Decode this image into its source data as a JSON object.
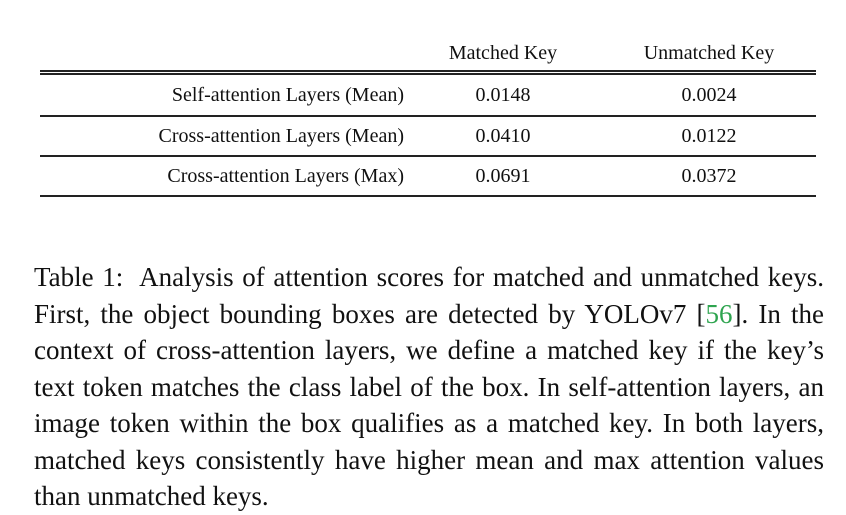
{
  "table": {
    "columns": [
      "",
      "Matched Key",
      "Unmatched Key"
    ],
    "rows": [
      {
        "label": "Self-attention Layers (Mean)",
        "matched": "0.0148",
        "unmatched": "0.0024"
      },
      {
        "label": "Cross-attention Layers (Mean)",
        "matched": "0.0410",
        "unmatched": "0.0122"
      },
      {
        "label": "Cross-attention Layers (Max)",
        "matched": "0.0691",
        "unmatched": "0.0372"
      }
    ]
  },
  "caption": {
    "label": "Table 1:",
    "text_before_cite": "Analysis of attention scores for matched and unmatched keys. First, the object bounding boxes are detected by YOLOv7 [",
    "cite": "56",
    "text_after_cite": "]. In the context of cross-attention layers, we define a matched key if the key’s text token matches the class label of the box. In self-attention layers, an image token within the box qualifies as a matched key. In both layers, matched keys consistently have higher mean and max attention values than unmatched keys."
  },
  "colors": {
    "text": "#111111",
    "citation": "#2ea44f",
    "rules": "#222222"
  }
}
